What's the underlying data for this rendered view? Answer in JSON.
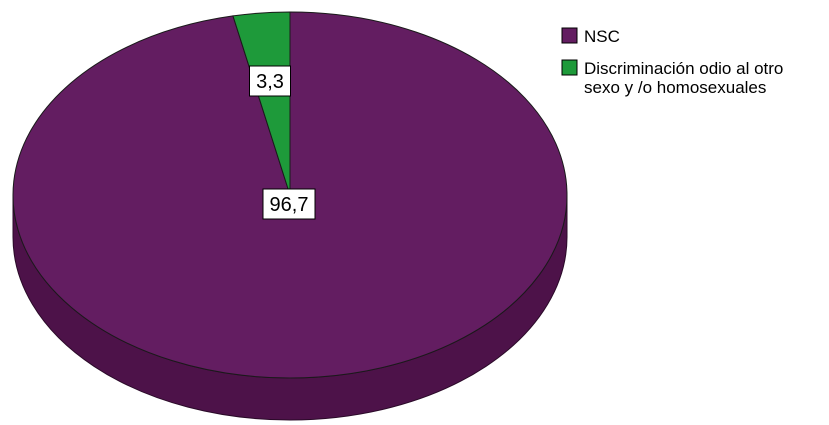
{
  "chart_data": {
    "type": "pie",
    "style": "3d",
    "categories": [
      "NSC",
      "Discriminación odio al otro sexo y /o homosexuales"
    ],
    "values": [
      96.7,
      3.3
    ],
    "data_labels": [
      "96,7",
      "3,3"
    ],
    "colors": [
      "#631d61",
      "#1e9a3a"
    ],
    "side_colors": [
      "#4d1249",
      "#15702a"
    ],
    "legend": {
      "position": "top-right",
      "entries": [
        {
          "lines": [
            "NSC"
          ]
        },
        {
          "lines": [
            "Discriminación odio al otro",
            "sexo y /o homosexuales"
          ]
        }
      ]
    }
  }
}
